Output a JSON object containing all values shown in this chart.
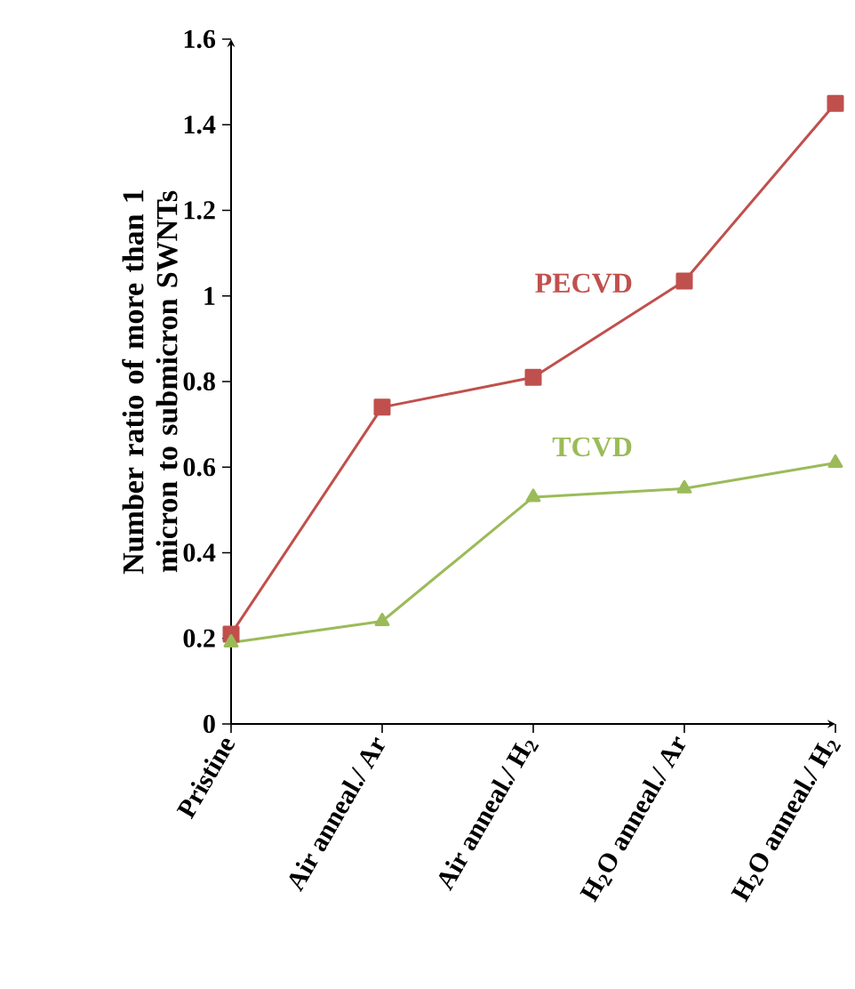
{
  "chart_data": {
    "type": "line",
    "ylabel": "Number ratio of  more than 1 micron to submicron SWNTs",
    "categories": [
      "Pristine",
      "Air anneal./ Ar",
      "Air anneal./ H$_{2}$",
      "H$_{2}$O anneal./ Ar",
      "H$_{2}$O anneal./ H$_{2}$"
    ],
    "series": [
      {
        "name": "PECVD",
        "color": "#c0504d",
        "marker": "square",
        "values": [
          0.21,
          0.74,
          0.81,
          1.035,
          1.45
        ]
      },
      {
        "name": "TCVD",
        "color": "#9bbb59",
        "marker": "triangle",
        "values": [
          0.19,
          0.24,
          0.53,
          0.55,
          0.61
        ]
      }
    ],
    "ylim": [
      0,
      1.6
    ],
    "yticks": [
      0,
      0.2,
      0.4,
      0.6,
      0.8,
      1,
      1.2,
      1.4,
      1.6
    ],
    "line_style": "solid"
  }
}
